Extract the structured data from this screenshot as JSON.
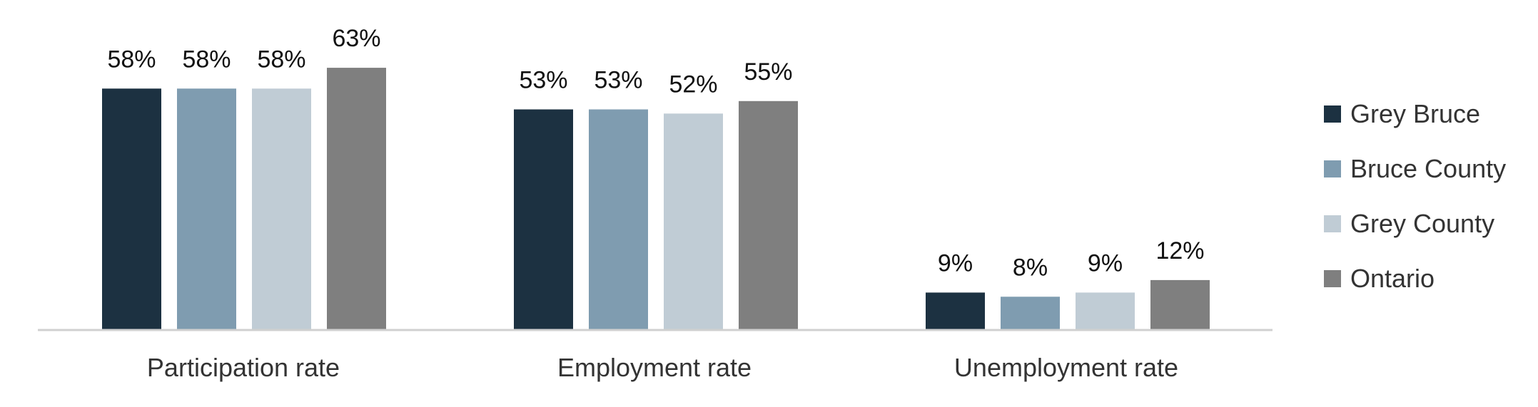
{
  "chart_data": {
    "type": "bar",
    "categories": [
      "Participation rate",
      "Employment rate",
      "Unemployment rate"
    ],
    "series": [
      {
        "name": "Grey Bruce",
        "color": "#1c3141",
        "values": [
          58,
          53,
          9
        ],
        "labels": [
          "58%",
          "53%",
          "9%"
        ]
      },
      {
        "name": "Bruce County",
        "color": "#7f9cb0",
        "values": [
          58,
          53,
          8
        ],
        "labels": [
          "58%",
          "53%",
          "8%"
        ]
      },
      {
        "name": "Grey County",
        "color": "#c0ccd5",
        "values": [
          58,
          52,
          9
        ],
        "labels": [
          "58%",
          "52%",
          "9%"
        ]
      },
      {
        "name": "Ontario",
        "color": "#7f7f7f",
        "values": [
          63,
          55,
          12
        ],
        "labels": [
          "63%",
          "55%",
          "12%"
        ]
      }
    ],
    "ylim": [
      0,
      70
    ],
    "grid": false,
    "legend_position": "right",
    "title": "",
    "xlabel": "",
    "ylabel": ""
  }
}
